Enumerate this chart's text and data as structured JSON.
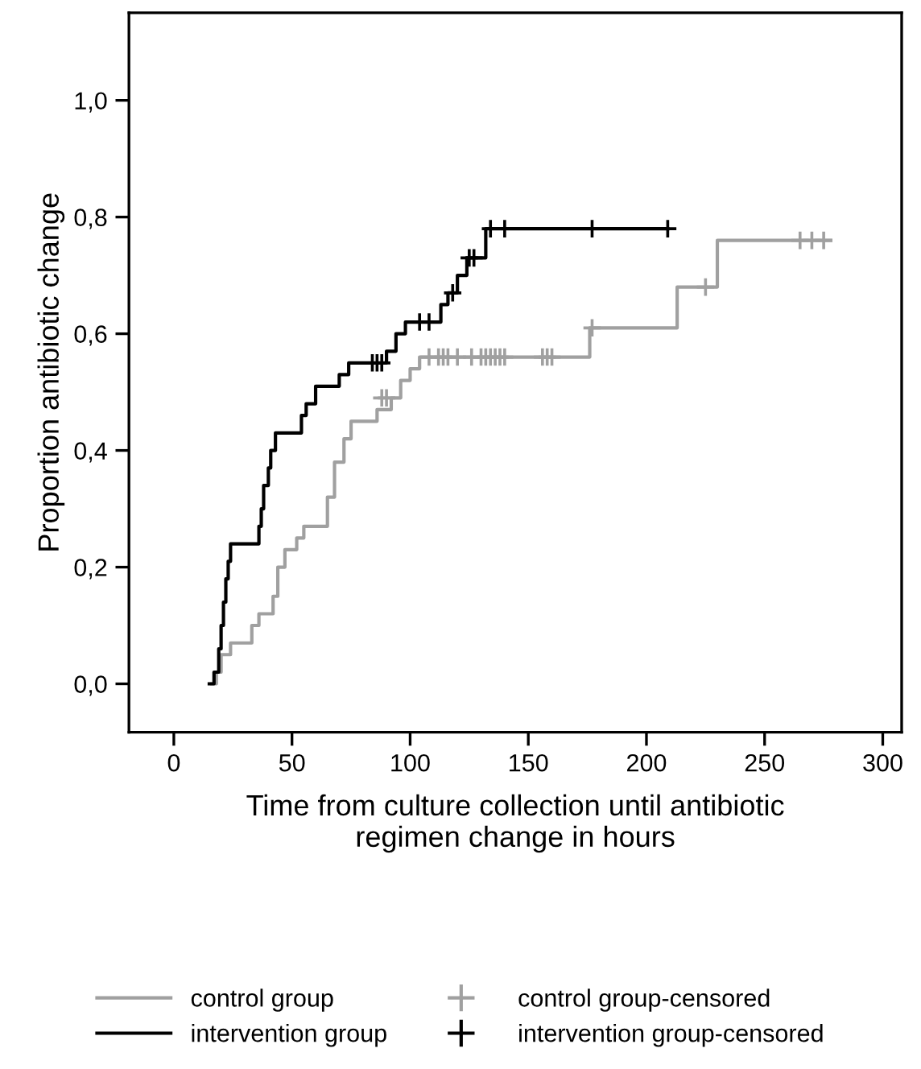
{
  "chart_data": {
    "type": "step",
    "xlabel": "Time from culture collection until antibiotic\nregimen change in hours",
    "ylabel": "Proportion antibiotic change",
    "xlim": [
      -19,
      308
    ],
    "ylim": [
      -0.083,
      1.15
    ],
    "xticks": [
      0,
      50,
      100,
      150,
      200,
      250,
      300
    ],
    "yticks": [
      {
        "value": 0,
        "label": "0,0"
      },
      {
        "value": 0.2,
        "label": "0,2"
      },
      {
        "value": 0.4,
        "label": "0,4"
      },
      {
        "value": 0.6,
        "label": "0,6"
      },
      {
        "value": 0.8,
        "label": "0,8"
      },
      {
        "value": 1.0,
        "label": "1,0"
      }
    ],
    "grid": false,
    "legend": "bottom",
    "series": [
      {
        "name": "control group",
        "color": "#a0a0a0",
        "x": [
          16,
          18,
          20,
          24,
          30,
          33,
          36,
          40,
          42,
          44,
          47,
          52,
          55,
          62,
          65,
          68,
          72,
          75,
          84,
          86,
          92,
          96,
          100,
          104,
          175,
          176,
          212,
          213,
          229,
          230,
          278
        ],
        "values": [
          0,
          0.02,
          0.05,
          0.07,
          0.07,
          0.1,
          0.12,
          0.12,
          0.15,
          0.2,
          0.23,
          0.25,
          0.27,
          0.27,
          0.32,
          0.38,
          0.42,
          0.45,
          0.45,
          0.47,
          0.49,
          0.52,
          0.54,
          0.56,
          0.56,
          0.61,
          0.61,
          0.68,
          0.68,
          0.76,
          0.76
        ]
      },
      {
        "name": "intervention group",
        "color": "#000000",
        "x": [
          15,
          17,
          19,
          20,
          21,
          22,
          23,
          24,
          35,
          36,
          37,
          38,
          40,
          41,
          43,
          52,
          54,
          56,
          60,
          68,
          70,
          74,
          88,
          90,
          94,
          98,
          110,
          113,
          116,
          120,
          124,
          131,
          132,
          209
        ],
        "values": [
          0,
          0.02,
          0.06,
          0.1,
          0.14,
          0.18,
          0.21,
          0.24,
          0.24,
          0.27,
          0.3,
          0.34,
          0.37,
          0.4,
          0.43,
          0.43,
          0.46,
          0.48,
          0.51,
          0.51,
          0.53,
          0.55,
          0.55,
          0.57,
          0.6,
          0.62,
          0.62,
          0.65,
          0.67,
          0.7,
          0.73,
          0.73,
          0.78,
          0.78
        ]
      },
      {
        "name": "control group-censored",
        "type": "scatter",
        "marker": "cross",
        "color": "#a0a0a0",
        "x": [
          88,
          90,
          108,
          112,
          114,
          116,
          120,
          126,
          130,
          132,
          134,
          136,
          138,
          140,
          156,
          158,
          160,
          177,
          225,
          265,
          270,
          275
        ],
        "values": [
          0.49,
          0.49,
          0.56,
          0.56,
          0.56,
          0.56,
          0.56,
          0.56,
          0.56,
          0.56,
          0.56,
          0.56,
          0.56,
          0.56,
          0.56,
          0.56,
          0.56,
          0.61,
          0.68,
          0.76,
          0.76,
          0.76
        ]
      },
      {
        "name": "intervention group-censored",
        "type": "scatter",
        "marker": "cross",
        "color": "#000000",
        "x": [
          84,
          86,
          88,
          104,
          108,
          118,
          125,
          127,
          134,
          140,
          177,
          209
        ],
        "values": [
          0.55,
          0.55,
          0.55,
          0.62,
          0.62,
          0.67,
          0.73,
          0.73,
          0.78,
          0.78,
          0.78,
          0.78
        ]
      }
    ]
  }
}
